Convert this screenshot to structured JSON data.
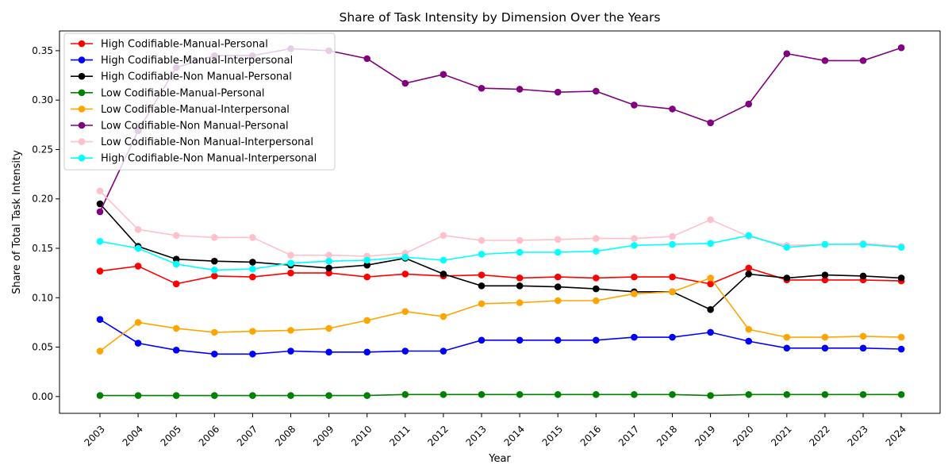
{
  "chart_data": {
    "type": "line",
    "title": "Share of Task Intensity by Dimension Over the Years",
    "xlabel": "Year",
    "ylabel": "Share of Total Task Intensity",
    "ylim": [
      -0.017,
      0.37
    ],
    "grid": false,
    "legend_position": "top-left",
    "categories": [
      "2003",
      "2004",
      "2005",
      "2006",
      "2007",
      "2008",
      "2009",
      "2010",
      "2011",
      "2012",
      "2013",
      "2014",
      "2015",
      "2016",
      "2017",
      "2018",
      "2019",
      "2020",
      "2021",
      "2022",
      "2023",
      "2024"
    ],
    "y_ticks": [
      "0.00",
      "0.05",
      "0.10",
      "0.15",
      "0.20",
      "0.25",
      "0.30",
      "0.35"
    ],
    "series": [
      {
        "name": "High Codifiable-Manual-Personal",
        "color": "#ff0000",
        "values": [
          0.127,
          0.132,
          0.114,
          0.122,
          0.121,
          0.125,
          0.125,
          0.121,
          0.124,
          0.122,
          0.123,
          0.12,
          0.121,
          0.12,
          0.121,
          0.121,
          0.114,
          0.13,
          0.118,
          0.118,
          0.118,
          0.117
        ]
      },
      {
        "name": "High Codifiable-Manual-Interpersonal",
        "color": "#0000ff",
        "values": [
          0.078,
          0.054,
          0.047,
          0.043,
          0.043,
          0.046,
          0.045,
          0.045,
          0.046,
          0.046,
          0.057,
          0.057,
          0.057,
          0.057,
          0.06,
          0.06,
          0.065,
          0.056,
          0.049,
          0.049,
          0.049,
          0.048
        ]
      },
      {
        "name": "High Codifiable-Non Manual-Personal",
        "color": "#000000",
        "values": [
          0.195,
          0.152,
          0.139,
          0.137,
          0.136,
          0.133,
          0.13,
          0.133,
          0.14,
          0.124,
          0.112,
          0.112,
          0.111,
          0.109,
          0.106,
          0.106,
          0.088,
          0.124,
          0.12,
          0.123,
          0.122,
          0.12
        ]
      },
      {
        "name": "Low Codifiable-Manual-Personal",
        "color": "#008000",
        "values": [
          0.001,
          0.001,
          0.001,
          0.001,
          0.001,
          0.001,
          0.001,
          0.001,
          0.002,
          0.002,
          0.002,
          0.002,
          0.002,
          0.002,
          0.002,
          0.002,
          0.001,
          0.002,
          0.002,
          0.002,
          0.002,
          0.002
        ]
      },
      {
        "name": "Low Codifiable-Manual-Interpersonal",
        "color": "#ffa500",
        "values": [
          0.046,
          0.075,
          0.069,
          0.065,
          0.066,
          0.067,
          0.069,
          0.077,
          0.086,
          0.081,
          0.094,
          0.095,
          0.097,
          0.097,
          0.104,
          0.106,
          0.12,
          0.068,
          0.06,
          0.06,
          0.061,
          0.06
        ]
      },
      {
        "name": "Low Codifiable-Non Manual-Personal",
        "color": "#800080",
        "values": [
          0.187,
          0.269,
          0.333,
          0.345,
          0.345,
          0.352,
          0.35,
          0.342,
          0.317,
          0.326,
          0.312,
          0.311,
          0.308,
          0.309,
          0.295,
          0.291,
          0.277,
          0.296,
          0.347,
          0.34,
          0.34,
          0.353
        ]
      },
      {
        "name": "Low Codifiable-Non Manual-Interpersonal",
        "color": "#ffc0cb",
        "values": [
          0.208,
          0.169,
          0.163,
          0.161,
          0.161,
          0.143,
          0.143,
          0.142,
          0.145,
          0.163,
          0.158,
          0.158,
          0.159,
          0.16,
          0.16,
          0.162,
          0.179,
          0.162,
          0.153,
          0.154,
          0.155,
          0.152
        ]
      },
      {
        "name": "High Codifiable-Non Manual-Interpersonal",
        "color": "#00ffff",
        "values": [
          0.157,
          0.15,
          0.134,
          0.128,
          0.129,
          0.135,
          0.137,
          0.138,
          0.141,
          0.138,
          0.144,
          0.146,
          0.146,
          0.147,
          0.153,
          0.154,
          0.155,
          0.163,
          0.151,
          0.154,
          0.154,
          0.151
        ]
      }
    ]
  }
}
